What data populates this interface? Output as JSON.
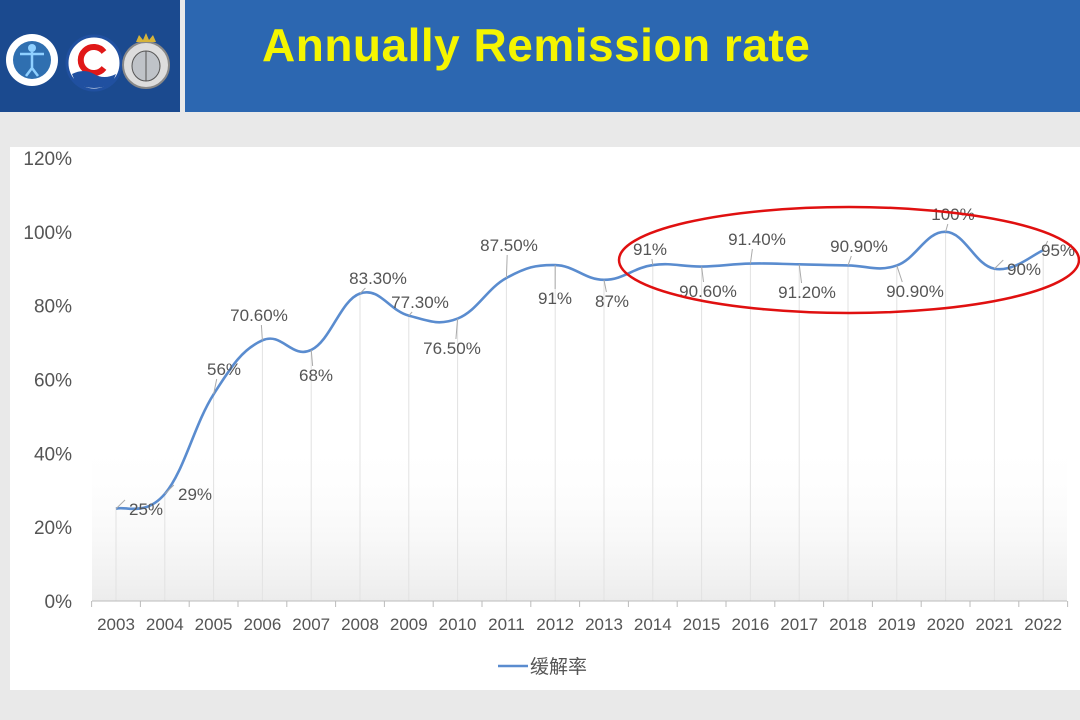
{
  "header": {
    "title": "Annually Remission rate",
    "logos": [
      "medical-logo",
      "c-wave-logo",
      "brain-crown-logo"
    ],
    "colors": {
      "logo_bg": "#1b4a8f",
      "title_bg": "#2c67b1",
      "title_text": "#f5f500"
    }
  },
  "chart_data": {
    "type": "line",
    "title": "",
    "xlabel": "",
    "ylabel": "",
    "categories": [
      "2003",
      "2004",
      "2005",
      "2006",
      "2007",
      "2008",
      "2009",
      "2010",
      "2011",
      "2012",
      "2013",
      "2014",
      "2015",
      "2016",
      "2017",
      "2018",
      "2019",
      "2020",
      "2021",
      "2022"
    ],
    "series": [
      {
        "name": "缓解率",
        "color": "#5a8ccf",
        "values": [
          25,
          29,
          56,
          70.6,
          68,
          83.3,
          77.3,
          76.5,
          87.5,
          91,
          87,
          91,
          90.6,
          91.4,
          91.2,
          90.9,
          90.9,
          100,
          90,
          95
        ],
        "data_labels": [
          "25%",
          "29%",
          "56%",
          "70.60%",
          "68%",
          "83.30%",
          "77.30%",
          "76.50%",
          "87.50%",
          "91%",
          "87%",
          "91%",
          "90.60%",
          "91.40%",
          "91.20%",
          "90.90%",
          "90.90%",
          "100%",
          "90%",
          "95%"
        ]
      }
    ],
    "ylim": [
      0,
      120
    ],
    "yticks": [
      "0%",
      "20%",
      "40%",
      "60%",
      "80%",
      "100%",
      "120%"
    ],
    "grid": false,
    "legend": "bottom-center",
    "annotations": [
      {
        "type": "ellipse",
        "color": "#e01010",
        "covers_categories": [
          "2014",
          "2022"
        ]
      }
    ]
  }
}
